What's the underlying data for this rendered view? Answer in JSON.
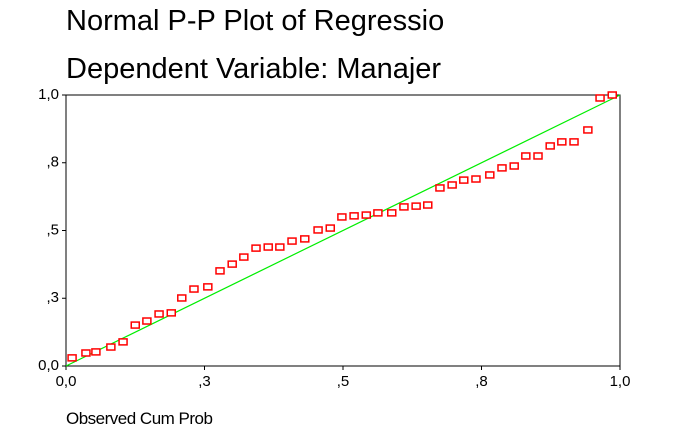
{
  "chart_data": {
    "type": "scatter",
    "title": "Normal P-P Plot of Regressio",
    "subtitle": "Dependent Variable: Manajer",
    "x_label": "Observed Cum Prob",
    "xlim": [
      0,
      1
    ],
    "ylim": [
      0,
      1
    ],
    "xticks": [
      {
        "value": 0,
        "label": "0,0"
      },
      {
        "value": 0.25,
        "label": ",3"
      },
      {
        "value": 0.5,
        "label": ",5"
      },
      {
        "value": 0.75,
        "label": ",8"
      },
      {
        "value": 1,
        "label": "1,0"
      }
    ],
    "yticks": [
      {
        "value": 0,
        "label": "0,0"
      },
      {
        "value": 0.25,
        "label": ",3"
      },
      {
        "value": 0.5,
        "label": ",5"
      },
      {
        "value": 0.75,
        "label": ",8"
      },
      {
        "value": 1,
        "label": "1,0"
      }
    ],
    "color": "#ff0000",
    "reference_line": {
      "color": "#00ee00",
      "x": [
        0,
        1
      ],
      "y": [
        0,
        1
      ]
    },
    "x": [
      0.011,
      0.036,
      0.054,
      0.081,
      0.103,
      0.125,
      0.146,
      0.168,
      0.19,
      0.209,
      0.231,
      0.256,
      0.278,
      0.3,
      0.321,
      0.343,
      0.365,
      0.386,
      0.408,
      0.431,
      0.455,
      0.477,
      0.498,
      0.52,
      0.542,
      0.563,
      0.588,
      0.61,
      0.632,
      0.653,
      0.675,
      0.697,
      0.718,
      0.74,
      0.765,
      0.787,
      0.809,
      0.83,
      0.852,
      0.874,
      0.895,
      0.917,
      0.942,
      0.964,
      0.986
    ],
    "y": [
      0.03,
      0.048,
      0.052,
      0.07,
      0.089,
      0.151,
      0.166,
      0.192,
      0.196,
      0.251,
      0.284,
      0.292,
      0.351,
      0.376,
      0.402,
      0.435,
      0.439,
      0.439,
      0.461,
      0.469,
      0.502,
      0.509,
      0.55,
      0.554,
      0.557,
      0.565,
      0.565,
      0.587,
      0.59,
      0.594,
      0.657,
      0.668,
      0.686,
      0.69,
      0.705,
      0.731,
      0.738,
      0.775,
      0.775,
      0.812,
      0.827,
      0.827,
      0.871,
      0.989,
      1.0
    ]
  }
}
